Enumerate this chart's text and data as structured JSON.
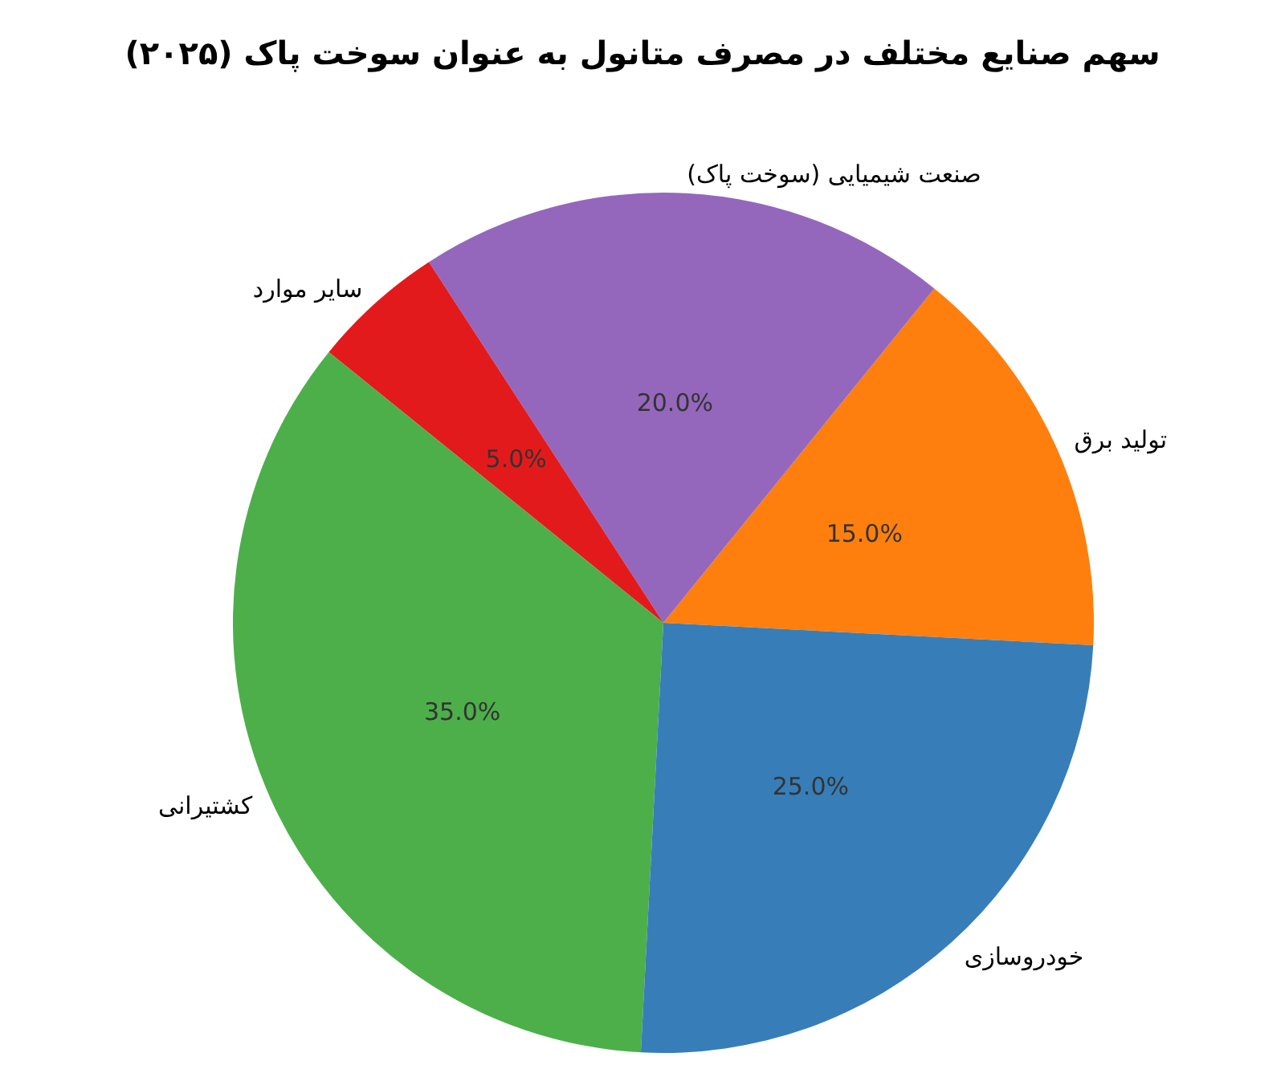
{
  "chart_data": {
    "type": "pie",
    "title": "سهم صنایع مختلف در مصرف متانول به عنوان سوخت پاک (۲۰۲۵)",
    "categories": [
      "تولید برق",
      "صنعت شیمیایی (سوخت پاک)",
      "سایر موارد",
      "کشتیرانی",
      "خودروسازی"
    ],
    "values": [
      15,
      20,
      5,
      35,
      25
    ],
    "colors": [
      "#ff7f0e",
      "#9467bd",
      "#e31a1c",
      "#4daf4a",
      "#377eb8"
    ],
    "value_labels": [
      "15.0%",
      "20.0%",
      "5.0%",
      "35.0%",
      "25.0%"
    ],
    "legend": false
  }
}
